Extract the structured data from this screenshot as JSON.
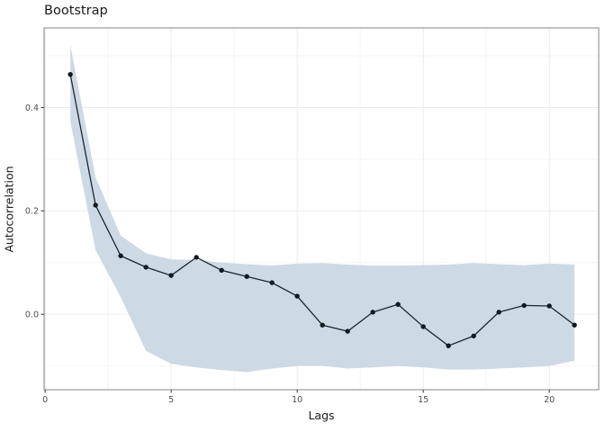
{
  "chart_data": {
    "type": "line",
    "title": "Bootstrap",
    "xlabel": "Lags",
    "ylabel": "Autocorrelation",
    "x": [
      1,
      2,
      3,
      4,
      5,
      6,
      7,
      8,
      9,
      10,
      11,
      12,
      13,
      14,
      15,
      16,
      17,
      18,
      19,
      20,
      21
    ],
    "series": [
      {
        "name": "autocorrelation",
        "values": [
          0.464,
          0.211,
          0.113,
          0.091,
          0.075,
          0.11,
          0.085,
          0.073,
          0.061,
          0.035,
          -0.021,
          -0.033,
          0.004,
          0.019,
          -0.024,
          -0.061,
          -0.042,
          0.004,
          0.017,
          0.016,
          -0.021
        ]
      },
      {
        "name": "ci_upper",
        "values": [
          0.521,
          0.265,
          0.152,
          0.118,
          0.106,
          0.105,
          0.1,
          0.097,
          0.094,
          0.098,
          0.099,
          0.096,
          0.094,
          0.094,
          0.095,
          0.096,
          0.099,
          0.097,
          0.095,
          0.098,
          0.096
        ]
      },
      {
        "name": "ci_lower",
        "values": [
          0.373,
          0.124,
          0.033,
          -0.071,
          -0.096,
          -0.103,
          -0.108,
          -0.112,
          -0.105,
          -0.1,
          -0.1,
          -0.105,
          -0.103,
          -0.1,
          -0.103,
          -0.107,
          -0.107,
          -0.105,
          -0.103,
          -0.1,
          -0.09
        ]
      }
    ],
    "x_ticks": {
      "major": [
        0,
        5,
        10,
        15,
        20
      ],
      "labels": [
        "0",
        "5",
        "10",
        "15",
        "20"
      ],
      "minor": [
        2.5,
        7.5,
        12.5,
        17.5
      ]
    },
    "y_ticks": {
      "major": [
        0.0,
        0.2,
        0.4
      ],
      "labels": [
        "0.0",
        "0.2",
        "0.4"
      ],
      "minor": [
        -0.1,
        0.1,
        0.3,
        0.5
      ]
    },
    "xlim": [
      -0.04,
      21.96
    ],
    "ylim": [
      -0.146,
      0.554
    ],
    "grid": true,
    "legend": "none",
    "colors": {
      "ribbon": "#c7d4e3",
      "line": "#1d2633",
      "point": "#101820",
      "grid_major": "#ebebeb",
      "grid_minor": "#f5f5f5",
      "panel_border": "#8f8f8f",
      "tick": "#333333",
      "tick_label": "#4d4d4d",
      "text": "#1a1a1a",
      "background": "#ffffff"
    }
  }
}
